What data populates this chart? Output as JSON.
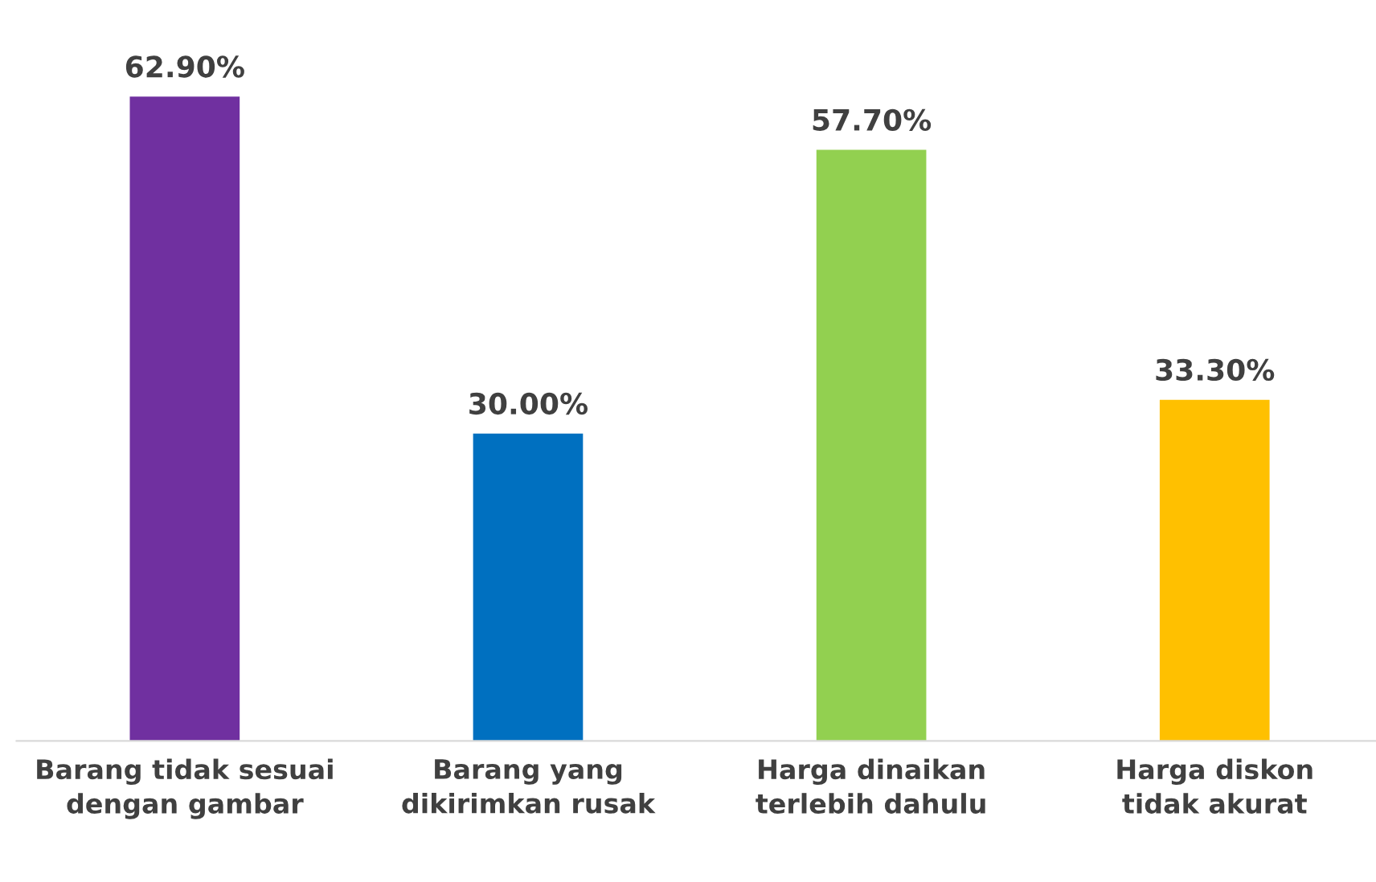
{
  "chart_data": {
    "type": "bar",
    "categories": [
      "Barang tidak sesuai dengan gambar",
      "Barang yang dikirimkan rusak",
      "Harga dinaikan terlebih dahulu",
      "Harga diskon tidak akurat"
    ],
    "values": [
      62.9,
      30.0,
      57.7,
      33.3
    ],
    "value_labels": [
      "62.90%",
      "30.00%",
      "57.70%",
      "33.30%"
    ],
    "colors": [
      "#7030a0",
      "#0070c0",
      "#92d050",
      "#ffc000"
    ],
    "grid": false,
    "legend": false
  }
}
